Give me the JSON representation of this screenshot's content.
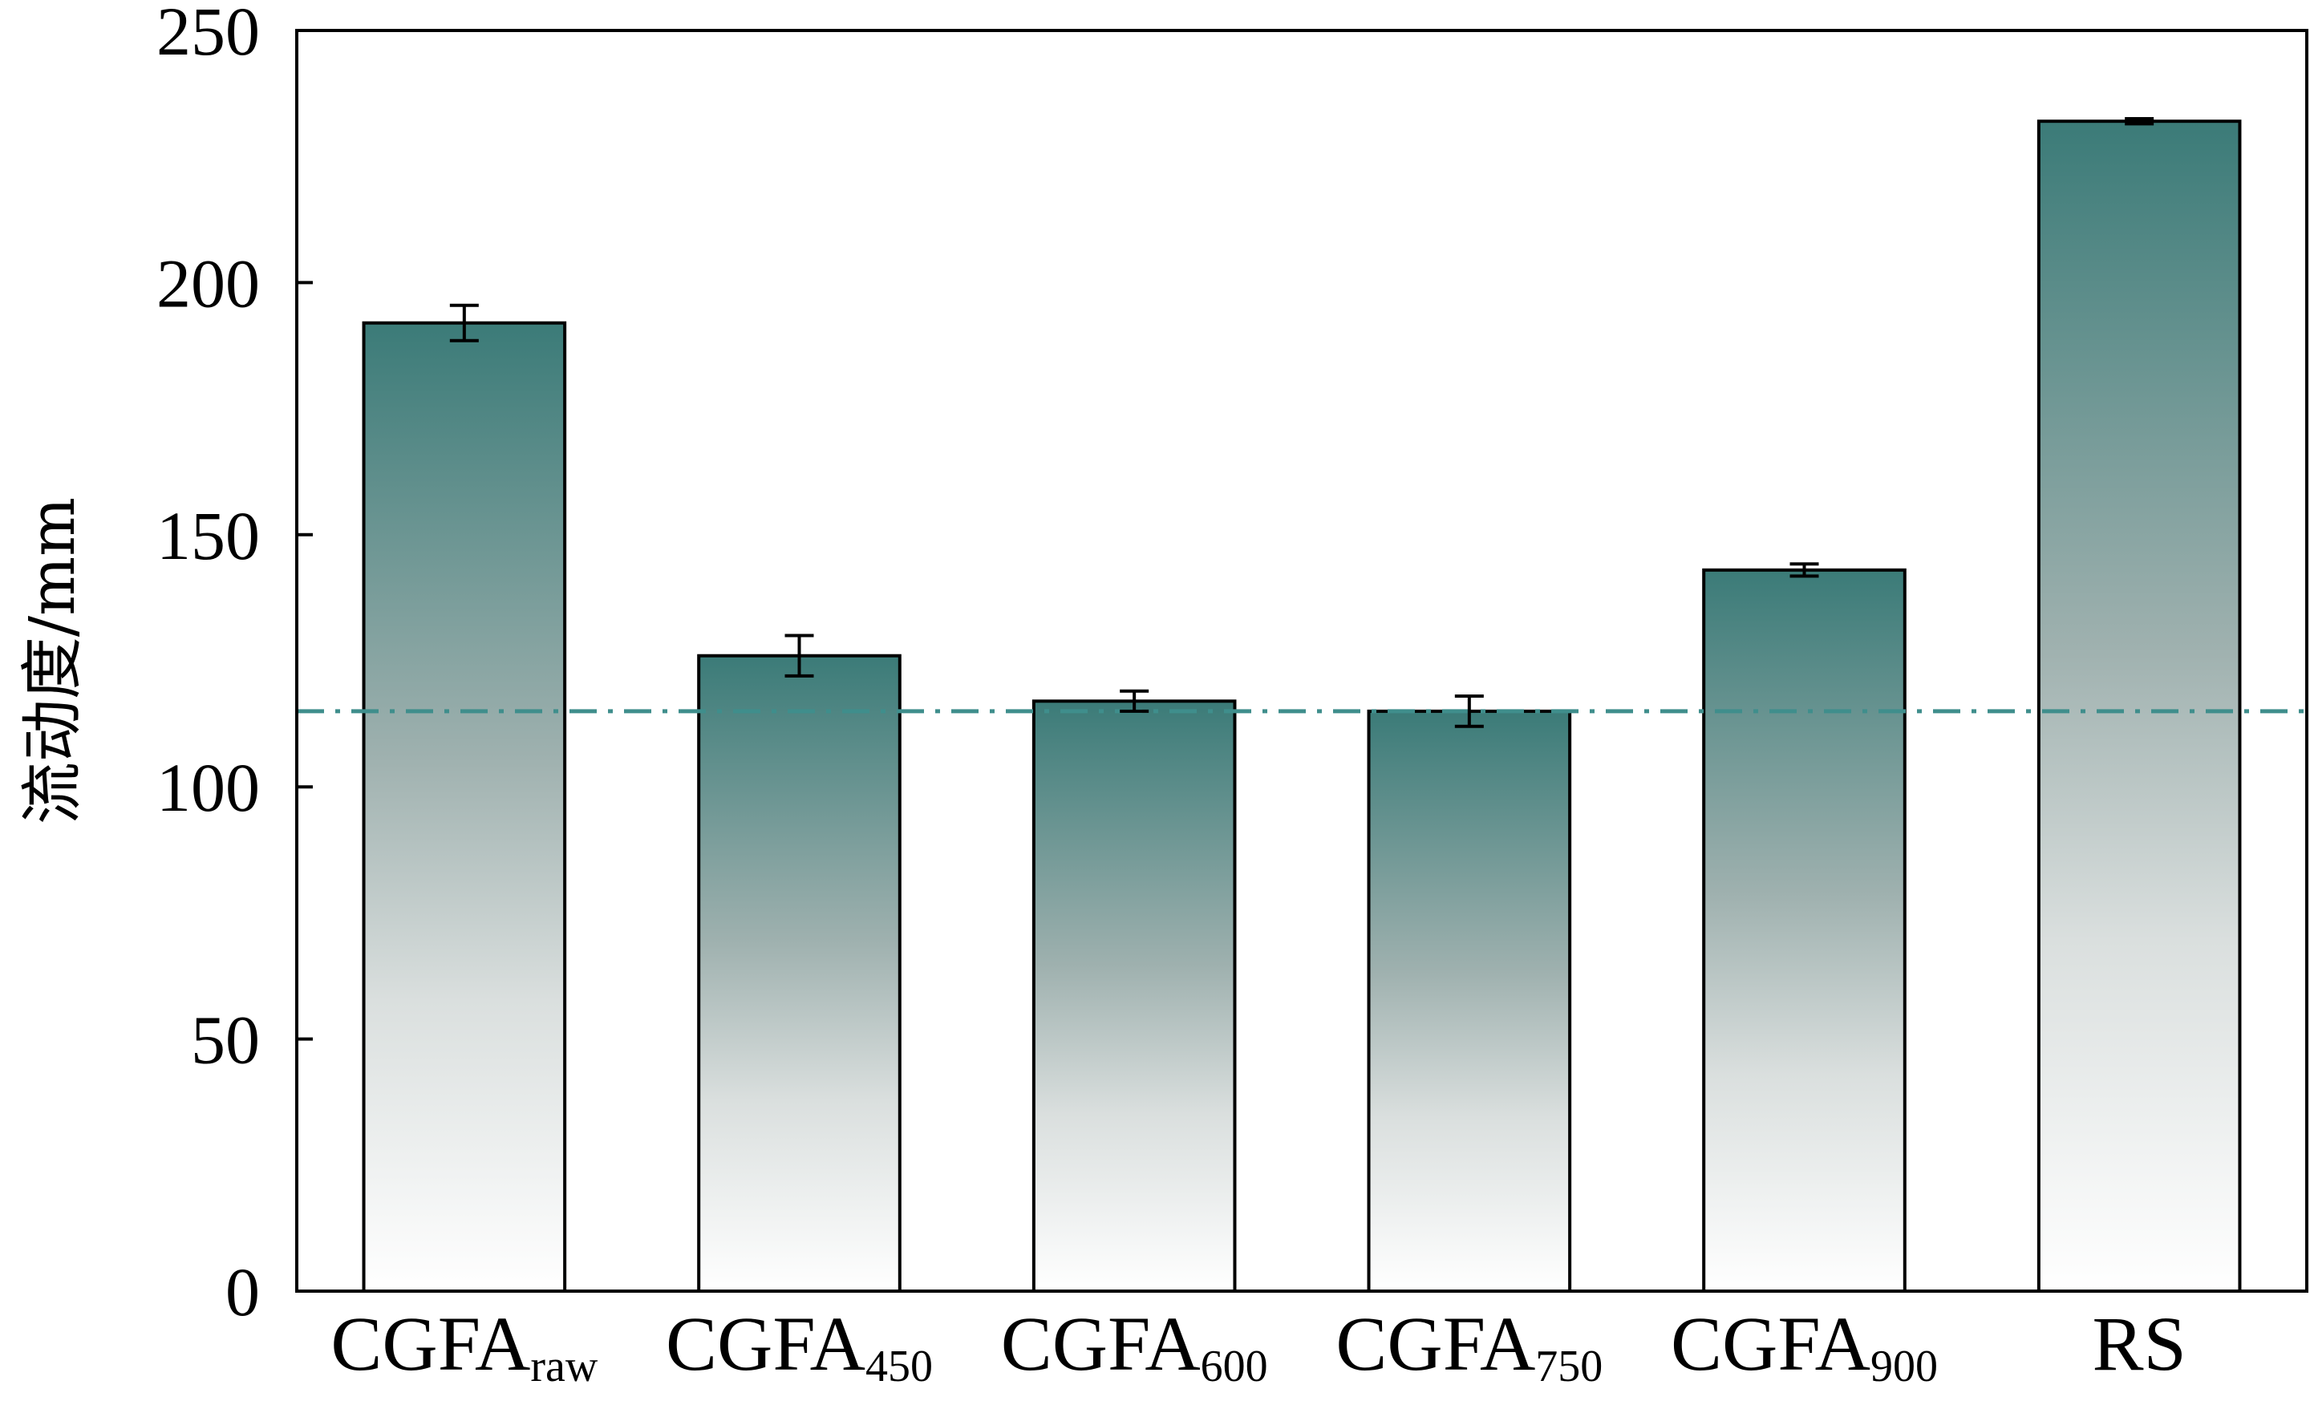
{
  "chart_data": {
    "type": "bar",
    "categories": [
      {
        "base": "CGFA",
        "sub": "raw"
      },
      {
        "base": "CGFA",
        "sub": "450"
      },
      {
        "base": "CGFA",
        "sub": "600"
      },
      {
        "base": "CGFA",
        "sub": "750"
      },
      {
        "base": "CGFA",
        "sub": "900"
      },
      {
        "base": "RS",
        "sub": ""
      }
    ],
    "values": [
      192,
      126,
      117,
      115,
      143,
      232
    ],
    "errors": [
      3.5,
      4,
      2,
      3,
      1.2,
      0.5
    ],
    "reference_line": 115,
    "ylabel": "流动度/mm",
    "ylim": [
      0,
      250
    ],
    "yticks": [
      0,
      50,
      100,
      150,
      200,
      250
    ],
    "colors": {
      "bar_top": "#3b7b78",
      "bar_bottom": "#ffffff",
      "reference_line": "#3f8e8c",
      "axis": "#000000"
    }
  }
}
